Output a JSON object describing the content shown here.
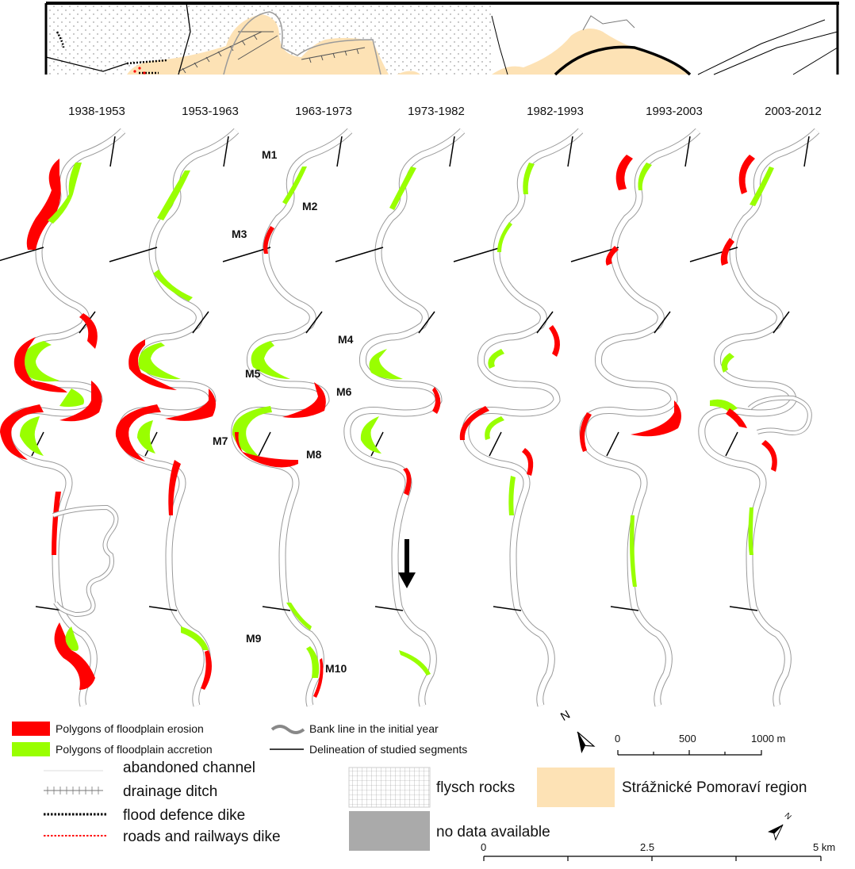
{
  "periods": [
    "1938-1953",
    "1953-1963",
    "1963-1973",
    "1973-1982",
    "1982-1993",
    "1993-2003",
    "2003-2012"
  ],
  "meander_labels": [
    "M1",
    "M2",
    "M3",
    "M4",
    "M5",
    "M6",
    "M7",
    "M8",
    "M9",
    "M10"
  ],
  "legend_top": {
    "erosion": "Polygons of floodplain erosion",
    "accretion": "Polygons of floodplain accretion",
    "bankline": "Bank line in the initial year",
    "delineation": "Delineation of studied segments"
  },
  "legend_bottom": {
    "abandoned": "abandoned channel",
    "drainage": "drainage ditch",
    "flood_dike": "flood defence dike",
    "roads_dike": "roads and railways dike",
    "flysch": "flysch rocks",
    "region": "Strážnické Pomoraví region",
    "nodata": "no data available"
  },
  "north_label": "N",
  "scale_small": {
    "ticks": [
      "0",
      "500",
      "1000 m"
    ]
  },
  "scale_large": {
    "ticks": [
      "0",
      "2.5",
      "5 km"
    ]
  },
  "colors": {
    "erosion": "#ff0000",
    "accretion": "#99ff00",
    "region": "#fde2b5",
    "channel": "#9a9a9a",
    "nodata": "#aaaaaa"
  }
}
